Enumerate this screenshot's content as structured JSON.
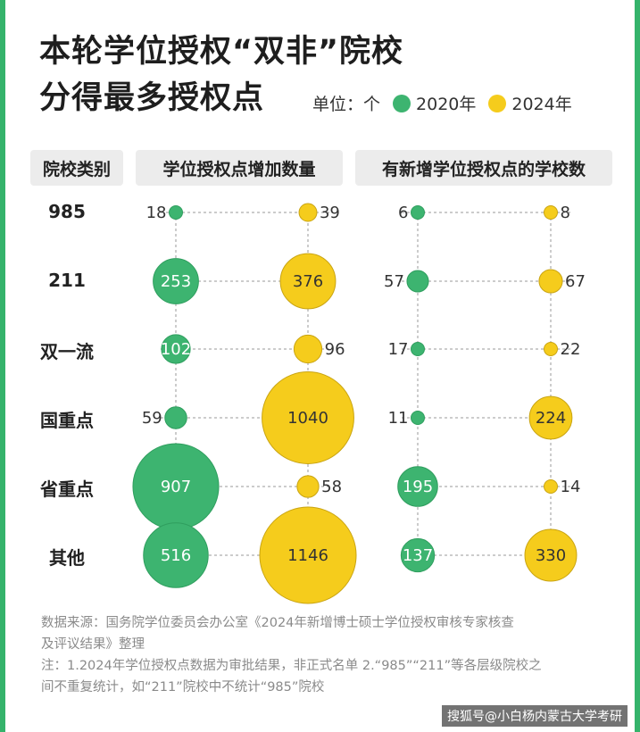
{
  "title_line1": "本轮学位授权“双非”院校",
  "title_line2": "分得最多授权点",
  "legend": {
    "unit": "单位：个",
    "items": [
      {
        "label": "2020年",
        "color": "#3db470"
      },
      {
        "label": "2024年",
        "color": "#f5cc1c"
      }
    ]
  },
  "headers": {
    "category": "院校类别",
    "panel1": "学位授权点增加数量",
    "panel2": "有新增学位授权点的学校数"
  },
  "footer": {
    "source_line1": "数据来源：国务院学位委员会办公室《2024年新增博士硕士学位授权审核专家核查",
    "source_line2": "及评议结果》整理",
    "note_line1": "注：1.2024年学位授权点数据为审批结果，非正式名单 2.“985”“211”等各层级院校之",
    "note_line2": "间不重复统计，如“211”院校中不统计“985”院校"
  },
  "watermark": "搜狐号@小白杨内蒙古大学考研",
  "chart_data": {
    "type": "bubble",
    "categories": [
      "985",
      "211",
      "双一流",
      "国重点",
      "省重点",
      "其他"
    ],
    "panels": [
      {
        "title": "学位授权点增加数量",
        "series": [
          {
            "name": "2020年",
            "values": [
              18,
              253,
              102,
              59,
              907,
              516
            ]
          },
          {
            "name": "2024年",
            "values": [
              39,
              376,
              96,
              1040,
              58,
              1146
            ]
          }
        ]
      },
      {
        "title": "有新增学位授权点的学校数",
        "series": [
          {
            "name": "2020年",
            "values": [
              6,
              57,
              17,
              11,
              195,
              137
            ]
          },
          {
            "name": "2024年",
            "values": [
              8,
              67,
              22,
              224,
              14,
              330
            ]
          }
        ]
      }
    ]
  }
}
